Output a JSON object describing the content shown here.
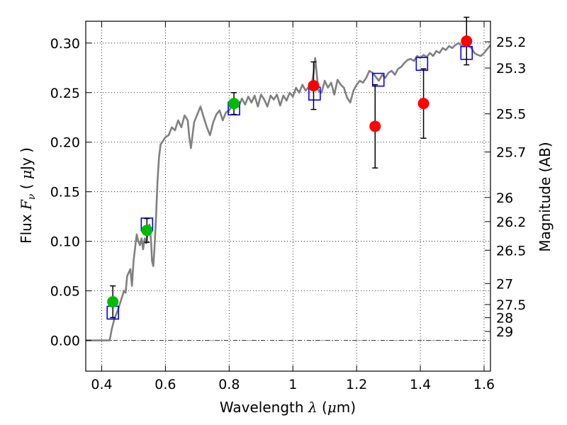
{
  "chart_data": {
    "type": "scatter",
    "xlabel": {
      "text": "Wavelength",
      "symbol": "λ",
      "unit_prefix": "(",
      "unit_mu": "μ",
      "unit": "m)"
    },
    "ylabel": {
      "text": "Flux",
      "symbol": "F",
      "subscript": "ν",
      "unit_prefix": "(",
      "unit_mu": "μ",
      "unit": "Jy )"
    },
    "y2label": "Magnitude (AB)",
    "xlim": [
      0.35,
      1.62
    ],
    "ylim": [
      -0.031,
      0.322
    ],
    "grid": true,
    "xticks": [
      0.4,
      0.6,
      0.8,
      1.0,
      1.2,
      1.4,
      1.6
    ],
    "xtick_labels": [
      "0.4",
      "0.6",
      "0.8",
      "1",
      "1.2",
      "1.4",
      "1.6"
    ],
    "yticks": [
      0.0,
      0.05,
      0.1,
      0.15,
      0.2,
      0.25,
      0.3
    ],
    "ytick_labels": [
      "0.00",
      "0.05",
      "0.10",
      "0.15",
      "0.20",
      "0.25",
      "0.30"
    ],
    "mag_ticks": [
      {
        "label": "25.2",
        "flux": 0.3013
      },
      {
        "label": "25.3",
        "flux": 0.2748
      },
      {
        "label": "25.5",
        "flux": 0.2286
      },
      {
        "label": "25.7",
        "flux": 0.1901
      },
      {
        "label": "26",
        "flux": 0.1442
      },
      {
        "label": "26.2",
        "flux": 0.1199
      },
      {
        "label": "26.5",
        "flux": 0.091
      },
      {
        "label": "27",
        "flux": 0.0574
      },
      {
        "label": "27.5",
        "flux": 0.0362
      },
      {
        "label": "28",
        "flux": 0.0229
      },
      {
        "label": "29",
        "flux": 0.0091
      }
    ],
    "zero_line": 0.0,
    "series": [
      {
        "kind": "model_spectrum",
        "color": "#808080",
        "points": [
          [
            0.35,
            0.0
          ],
          [
            0.425,
            0.0
          ],
          [
            0.432,
            0.012
          ],
          [
            0.44,
            0.022
          ],
          [
            0.45,
            0.03
          ],
          [
            0.46,
            0.04
          ],
          [
            0.47,
            0.05
          ],
          [
            0.475,
            0.048
          ],
          [
            0.48,
            0.065
          ],
          [
            0.49,
            0.072
          ],
          [
            0.495,
            0.055
          ],
          [
            0.5,
            0.08
          ],
          [
            0.505,
            0.094
          ],
          [
            0.51,
            0.107
          ],
          [
            0.515,
            0.1
          ],
          [
            0.52,
            0.096
          ],
          [
            0.525,
            0.103
          ],
          [
            0.53,
            0.092
          ],
          [
            0.535,
            0.103
          ],
          [
            0.54,
            0.098
          ],
          [
            0.545,
            0.11
          ],
          [
            0.55,
            0.117
          ],
          [
            0.555,
            0.1
          ],
          [
            0.558,
            0.08
          ],
          [
            0.562,
            0.075
          ],
          [
            0.565,
            0.09
          ],
          [
            0.57,
            0.12
          ],
          [
            0.575,
            0.16
          ],
          [
            0.58,
            0.185
          ],
          [
            0.585,
            0.198
          ],
          [
            0.59,
            0.2
          ],
          [
            0.6,
            0.205
          ],
          [
            0.61,
            0.207
          ],
          [
            0.62,
            0.215
          ],
          [
            0.63,
            0.212
          ],
          [
            0.64,
            0.222
          ],
          [
            0.65,
            0.215
          ],
          [
            0.66,
            0.227
          ],
          [
            0.67,
            0.222
          ],
          [
            0.675,
            0.205
          ],
          [
            0.68,
            0.194
          ],
          [
            0.69,
            0.22
          ],
          [
            0.7,
            0.228
          ],
          [
            0.71,
            0.236
          ],
          [
            0.72,
            0.225
          ],
          [
            0.73,
            0.215
          ],
          [
            0.74,
            0.207
          ],
          [
            0.75,
            0.22
          ],
          [
            0.76,
            0.228
          ],
          [
            0.77,
            0.232
          ],
          [
            0.78,
            0.222
          ],
          [
            0.79,
            0.23
          ],
          [
            0.8,
            0.232
          ],
          [
            0.81,
            0.238
          ],
          [
            0.82,
            0.24
          ],
          [
            0.83,
            0.236
          ],
          [
            0.84,
            0.244
          ],
          [
            0.85,
            0.238
          ],
          [
            0.86,
            0.246
          ],
          [
            0.87,
            0.24
          ],
          [
            0.88,
            0.247
          ],
          [
            0.89,
            0.236
          ],
          [
            0.9,
            0.248
          ],
          [
            0.91,
            0.243
          ],
          [
            0.92,
            0.236
          ],
          [
            0.93,
            0.247
          ],
          [
            0.94,
            0.243
          ],
          [
            0.95,
            0.248
          ],
          [
            0.96,
            0.237
          ],
          [
            0.97,
            0.247
          ],
          [
            0.98,
            0.242
          ],
          [
            0.99,
            0.25
          ],
          [
            1.0,
            0.246
          ],
          [
            1.01,
            0.255
          ],
          [
            1.02,
            0.25
          ],
          [
            1.03,
            0.258
          ],
          [
            1.04,
            0.252
          ],
          [
            1.05,
            0.256
          ],
          [
            1.06,
            0.26
          ],
          [
            1.065,
            0.27
          ],
          [
            1.07,
            0.285
          ],
          [
            1.075,
            0.268
          ],
          [
            1.08,
            0.252
          ],
          [
            1.09,
            0.25
          ],
          [
            1.1,
            0.262
          ],
          [
            1.11,
            0.255
          ],
          [
            1.12,
            0.26
          ],
          [
            1.13,
            0.248
          ],
          [
            1.14,
            0.263
          ],
          [
            1.15,
            0.258
          ],
          [
            1.16,
            0.255
          ],
          [
            1.17,
            0.245
          ],
          [
            1.18,
            0.24
          ],
          [
            1.19,
            0.252
          ],
          [
            1.2,
            0.258
          ],
          [
            1.21,
            0.262
          ],
          [
            1.22,
            0.26
          ],
          [
            1.23,
            0.265
          ],
          [
            1.24,
            0.272
          ],
          [
            1.25,
            0.27
          ],
          [
            1.26,
            0.266
          ],
          [
            1.27,
            0.262
          ],
          [
            1.28,
            0.268
          ],
          [
            1.29,
            0.265
          ],
          [
            1.3,
            0.27
          ],
          [
            1.31,
            0.272
          ],
          [
            1.32,
            0.268
          ],
          [
            1.33,
            0.274
          ],
          [
            1.34,
            0.276
          ],
          [
            1.35,
            0.28
          ],
          [
            1.36,
            0.283
          ],
          [
            1.37,
            0.284
          ],
          [
            1.38,
            0.282
          ],
          [
            1.39,
            0.287
          ],
          [
            1.4,
            0.285
          ],
          [
            1.41,
            0.288
          ],
          [
            1.42,
            0.286
          ],
          [
            1.43,
            0.29
          ],
          [
            1.44,
            0.287
          ],
          [
            1.45,
            0.292
          ],
          [
            1.46,
            0.29
          ],
          [
            1.47,
            0.295
          ],
          [
            1.48,
            0.293
          ],
          [
            1.49,
            0.297
          ],
          [
            1.5,
            0.295
          ],
          [
            1.51,
            0.298
          ],
          [
            1.52,
            0.3
          ],
          [
            1.53,
            0.297
          ],
          [
            1.54,
            0.301
          ],
          [
            1.55,
            0.298
          ],
          [
            1.56,
            0.295
          ],
          [
            1.57,
            0.29
          ],
          [
            1.58,
            0.288
          ],
          [
            1.59,
            0.287
          ],
          [
            1.6,
            0.29
          ],
          [
            1.61,
            0.294
          ],
          [
            1.62,
            0.298
          ]
        ]
      },
      {
        "kind": "model_photometry",
        "color": "#0000ff",
        "marker": "open-square",
        "points": [
          {
            "x": 0.435,
            "y": 0.028
          },
          {
            "x": 0.542,
            "y": 0.117
          },
          {
            "x": 0.815,
            "y": 0.234
          },
          {
            "x": 1.068,
            "y": 0.249
          },
          {
            "x": 1.268,
            "y": 0.263
          },
          {
            "x": 1.405,
            "y": 0.279
          },
          {
            "x": 1.545,
            "y": 0.29
          }
        ]
      },
      {
        "kind": "observed_optical",
        "color": "#00bb00",
        "marker": "filled-circle",
        "points": [
          {
            "x": 0.435,
            "y": 0.039,
            "err": 0.016
          },
          {
            "x": 0.542,
            "y": 0.111,
            "err": 0.012
          },
          {
            "x": 0.815,
            "y": 0.239,
            "err": 0.011
          }
        ]
      },
      {
        "kind": "observed_nir",
        "color": "#ff0000",
        "marker": "filled-circle",
        "points": [
          {
            "x": 1.065,
            "y": 0.257,
            "err": 0.024
          },
          {
            "x": 1.258,
            "y": 0.216,
            "err": 0.042
          },
          {
            "x": 1.41,
            "y": 0.239,
            "err": 0.035
          },
          {
            "x": 1.545,
            "y": 0.302,
            "err": 0.024
          }
        ]
      }
    ]
  }
}
